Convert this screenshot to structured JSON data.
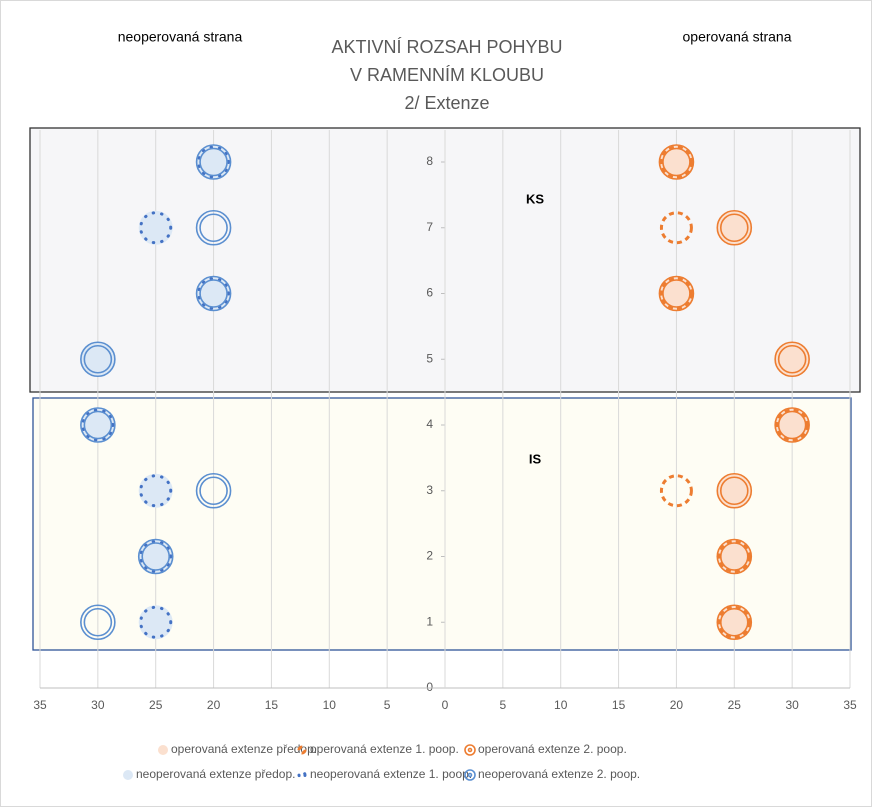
{
  "chart_data": {
    "type": "scatter",
    "title": [
      "AKTIVNÍ ROZSAH POHYBU",
      "V RAMENNÍM KLOUBU",
      "2/ Extenze"
    ],
    "annotations": [
      "neoperovaná strana",
      "operovaná strana",
      "KS",
      "IS"
    ],
    "xlim": [
      -35,
      35
    ],
    "xticks": [
      {
        "value": -35,
        "label": "35"
      },
      {
        "value": -30,
        "label": "30"
      },
      {
        "value": -25,
        "label": "25"
      },
      {
        "value": -20,
        "label": "20"
      },
      {
        "value": -15,
        "label": "15"
      },
      {
        "value": -10,
        "label": "10"
      },
      {
        "value": -5,
        "label": "5"
      },
      0,
      5,
      10,
      15,
      20,
      25,
      30,
      35
    ],
    "ylim": [
      0,
      8
    ],
    "yticks": [
      0,
      1,
      2,
      3,
      4,
      5,
      6,
      7,
      8
    ],
    "grid": true,
    "legend": "bottom",
    "series": [
      {
        "name": "operovaná extenze předop.",
        "color": "#fbe0cf",
        "marker": "filled",
        "x": [
          20,
          25,
          20,
          30,
          30,
          25,
          25,
          25
        ],
        "y": [
          8,
          7,
          6,
          5,
          4,
          3,
          2,
          1
        ]
      },
      {
        "name": "operovaná extenze 1. poop.",
        "color": "#ed7d31",
        "marker": "dashed",
        "x": [
          20,
          20,
          20,
          30,
          20,
          25,
          25
        ],
        "y": [
          8,
          7,
          6,
          4,
          3,
          2,
          1
        ]
      },
      {
        "name": "operovaná extenze 2. poop.",
        "color": "#ed7d31",
        "marker": "double",
        "x": [
          20,
          25,
          20,
          30,
          30,
          25,
          25,
          25
        ],
        "y": [
          8,
          7,
          6,
          5,
          4,
          3,
          2,
          1
        ]
      },
      {
        "name": "neoperovaná extenze předop.",
        "color": "#dce8f5",
        "marker": "filled",
        "x": [
          -20,
          -25,
          -20,
          -30,
          -30,
          -25,
          -25,
          -25
        ],
        "y": [
          8,
          7,
          6,
          5,
          4,
          3,
          2,
          1
        ]
      },
      {
        "name": "neoperovaná extenze 1. poop.",
        "color": "#4472c4",
        "marker": "dotted",
        "x": [
          -20,
          -25,
          -20,
          -30,
          -25,
          -25,
          -25
        ],
        "y": [
          8,
          7,
          6,
          4,
          3,
          2,
          1
        ]
      },
      {
        "name": "neoperovaná extenze 2. poop.",
        "color": "#5b8fd0",
        "marker": "double",
        "x": [
          -20,
          -20,
          -20,
          -30,
          -30,
          -20,
          -25,
          -30
        ],
        "y": [
          8,
          7,
          6,
          5,
          4,
          3,
          2,
          1
        ]
      }
    ]
  }
}
